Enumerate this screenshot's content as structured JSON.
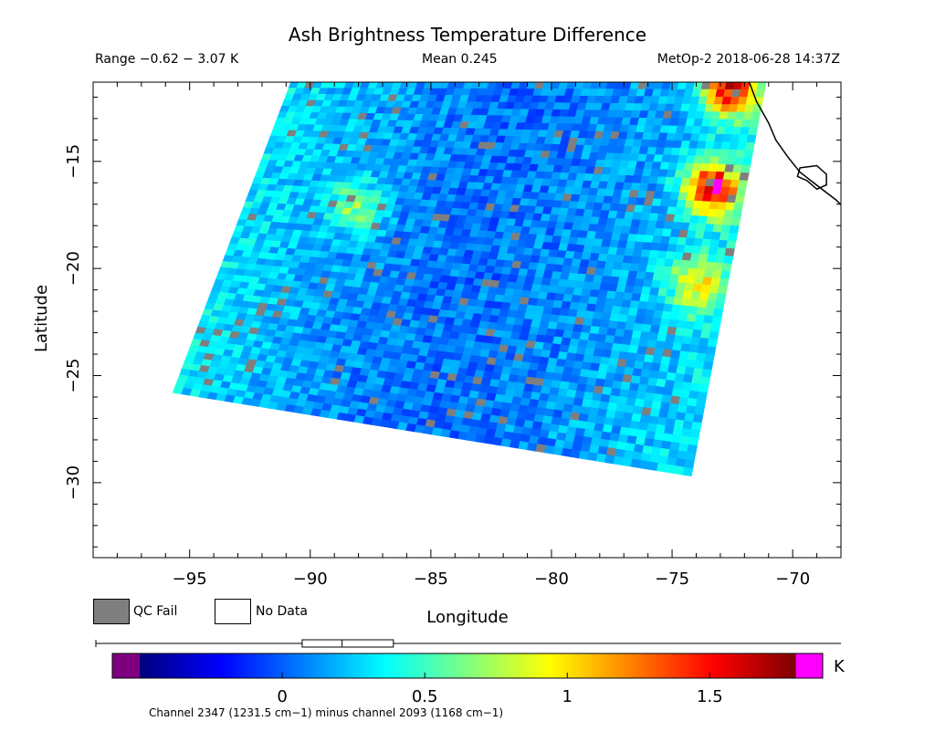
{
  "chart_data": {
    "type": "heatmap",
    "title": "Ash Brightness Temperature Difference",
    "range_text": "Range −0.62 − 3.07 K",
    "mean_text": "Mean 0.245",
    "satellite_text": "MetOp-2 2018-06-28 14:37Z",
    "xlabel": "Longitude",
    "ylabel": "Latitude",
    "xlim": [
      -99,
      -68
    ],
    "ylim": [
      -33.5,
      -11.3
    ],
    "x_ticks": [
      -95,
      -90,
      -85,
      -80,
      -75,
      -70
    ],
    "x_tick_labels": [
      "−95",
      "−90",
      "−85",
      "−80",
      "−75",
      "−70"
    ],
    "y_ticks": [
      -15,
      -20,
      -25,
      -30
    ],
    "y_tick_labels": [
      "−15",
      "−20",
      "−25",
      "−30"
    ],
    "swath_corners": {
      "top_left": [
        -90.8,
        -11.3
      ],
      "top_right": [
        -71.1,
        -11.3
      ],
      "bottom_right": [
        -74.2,
        -29.7
      ],
      "bottom_left": [
        -95.7,
        -25.8
      ]
    },
    "hotspots": [
      {
        "lon": -73.3,
        "lat": -16.3,
        "value": 1.8
      },
      {
        "lon": -72.6,
        "lat": -11.6,
        "value": 1.8
      },
      {
        "lon": -74.0,
        "lat": -20.8,
        "value": 1.05
      },
      {
        "lon": -88.0,
        "lat": -17.2,
        "value": 0.8
      }
    ],
    "legend": {
      "qc_fail_label": "QC Fail",
      "qc_fail_color": "#7f7f7f",
      "no_data_label": "No Data",
      "no_data_color": "#ffffff"
    },
    "colorbar": {
      "min": -0.5,
      "max": 1.8,
      "ticks": [
        0,
        0.5,
        1,
        1.5
      ],
      "tick_labels": [
        "0",
        "0.5",
        "1",
        "1.5"
      ],
      "unit": "K",
      "under_color": "#7f007f",
      "over_color": "#ff00ff",
      "colors": [
        "#00007f",
        "#0000ff",
        "#0080ff",
        "#00ffff",
        "#80ff80",
        "#ffff00",
        "#ff8000",
        "#ff0000",
        "#7f0000"
      ],
      "boxplot": {
        "whisker_low": -0.62,
        "q1": 0.07,
        "median": 0.21,
        "q3": 0.39,
        "whisker_high": 1.8
      }
    },
    "channel_text": "Channel 2347 (1231.5 cm−1) minus channel 2093 (1168 cm−1)",
    "grid": false
  }
}
